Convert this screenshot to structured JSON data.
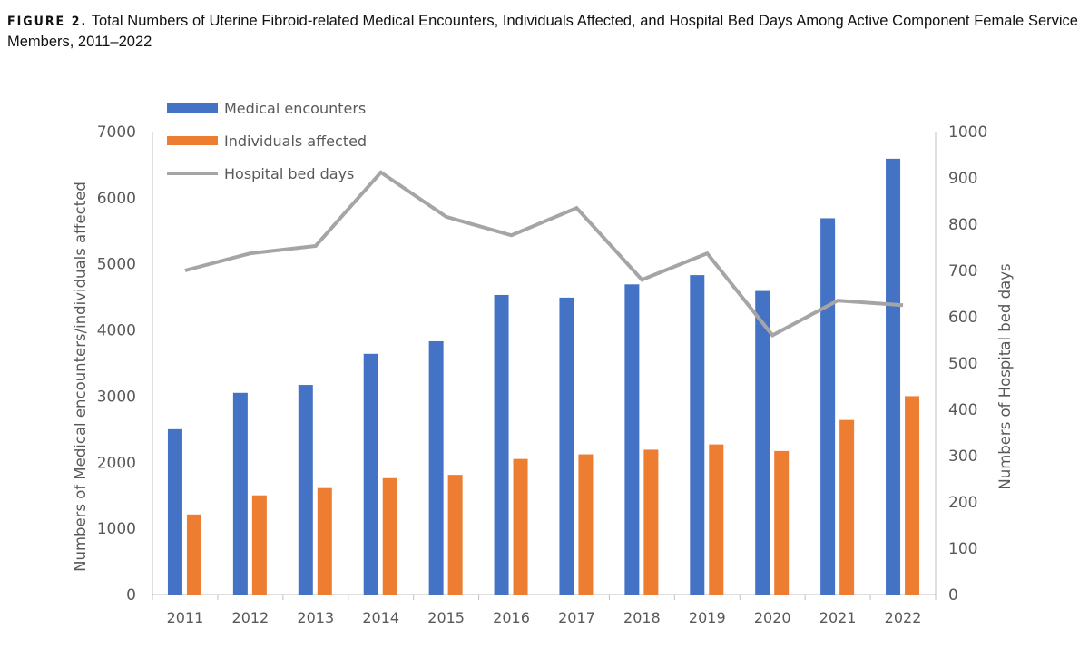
{
  "caption": {
    "label": "FIGURE 2.",
    "text": "Total Numbers of Uterine Fibroid-related Medical Encounters, Individuals Affected, and Hospital Bed Days Among Active Component Female Service Members, 2011–2022"
  },
  "chart_data": {
    "type": "bar+line",
    "title": "",
    "categories": [
      "2011",
      "2012",
      "2013",
      "2014",
      "2015",
      "2016",
      "2017",
      "2018",
      "2019",
      "2020",
      "2021",
      "2022"
    ],
    "series": [
      {
        "name": "Medical encounters",
        "type": "bar",
        "axis": "left",
        "color": "#4472C4",
        "values": [
          2500,
          3050,
          3170,
          3640,
          3830,
          4530,
          4490,
          4690,
          4830,
          4590,
          5690,
          6590
        ]
      },
      {
        "name": "Individuals affected",
        "type": "bar",
        "axis": "left",
        "color": "#ED7D31",
        "values": [
          1210,
          1500,
          1610,
          1760,
          1810,
          2050,
          2120,
          2190,
          2270,
          2170,
          2640,
          3000
        ]
      },
      {
        "name": "Hospital bed days",
        "type": "line",
        "axis": "right",
        "color": "#A5A5A5",
        "values": [
          700,
          737,
          753,
          912,
          816,
          776,
          835,
          680,
          737,
          560,
          635,
          625
        ]
      }
    ],
    "ylabel": "Numbers of Medical encounters/individuals affected",
    "y2label": "Numbers of Hospital bed days",
    "ylim": [
      0,
      7000
    ],
    "y2lim": [
      0,
      1000
    ],
    "yticks": [
      "0",
      "1000",
      "2000",
      "3000",
      "4000",
      "5000",
      "6000",
      "7000"
    ],
    "y2ticks": [
      "0",
      "100",
      "200",
      "300",
      "400",
      "500",
      "600",
      "700",
      "800",
      "900",
      "1000"
    ],
    "grid": false,
    "legend": "top-left"
  }
}
